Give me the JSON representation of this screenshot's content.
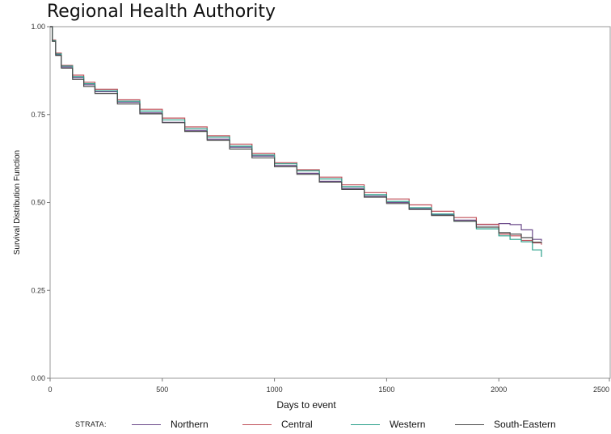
{
  "page_title": "Regional Health Authority",
  "chart_data": {
    "type": "line",
    "title": "Regional Health Authority",
    "xlabel": "Days to event",
    "ylabel": "Survival Distribution Function",
    "xlim": [
      0,
      2500
    ],
    "ylim": [
      0,
      1
    ],
    "xticks": [
      0,
      500,
      1000,
      1500,
      2000,
      2500
    ],
    "xtick_labels": [
      "0",
      "500",
      "1000",
      "1500",
      "2000",
      "2500"
    ],
    "yticks": [
      0,
      0.25,
      0.5,
      0.75,
      1
    ],
    "ytick_labels": [
      "0.00",
      "0.25",
      "0.50",
      "0.75",
      "1.00"
    ],
    "grid": false,
    "legend_position": "bottom",
    "legend_title": "STRATA:",
    "series": [
      {
        "name": "Northern",
        "color": "#6b4a8a",
        "x": [
          0,
          10,
          25,
          50,
          100,
          150,
          200,
          300,
          400,
          500,
          600,
          700,
          800,
          900,
          1000,
          1100,
          1200,
          1300,
          1400,
          1500,
          1600,
          1700,
          1800,
          1900,
          2000,
          2050,
          2100,
          2150,
          2190
        ],
        "y": [
          1.0,
          0.96,
          0.92,
          0.885,
          0.855,
          0.835,
          0.815,
          0.785,
          0.755,
          0.728,
          0.705,
          0.68,
          0.657,
          0.632,
          0.605,
          0.583,
          0.56,
          0.54,
          0.518,
          0.5,
          0.482,
          0.465,
          0.45,
          0.437,
          0.44,
          0.437,
          0.422,
          0.395,
          0.39
        ]
      },
      {
        "name": "Central",
        "color": "#c0505a",
        "x": [
          0,
          10,
          25,
          50,
          100,
          150,
          200,
          300,
          400,
          500,
          600,
          700,
          800,
          900,
          1000,
          1100,
          1200,
          1300,
          1400,
          1500,
          1600,
          1700,
          1800,
          1900,
          2000,
          2050,
          2100,
          2150,
          2190
        ],
        "y": [
          1.0,
          0.962,
          0.925,
          0.89,
          0.862,
          0.842,
          0.822,
          0.792,
          0.765,
          0.74,
          0.715,
          0.69,
          0.666,
          0.64,
          0.613,
          0.593,
          0.572,
          0.55,
          0.528,
          0.51,
          0.493,
          0.475,
          0.457,
          0.438,
          0.41,
          0.405,
          0.392,
          0.385,
          0.38
        ]
      },
      {
        "name": "Western",
        "color": "#2aa08a",
        "x": [
          0,
          10,
          25,
          50,
          100,
          150,
          200,
          300,
          400,
          500,
          600,
          700,
          800,
          900,
          1000,
          1100,
          1200,
          1300,
          1400,
          1500,
          1600,
          1700,
          1800,
          1900,
          2000,
          2050,
          2100,
          2150,
          2190
        ],
        "y": [
          1.0,
          0.96,
          0.922,
          0.888,
          0.858,
          0.838,
          0.818,
          0.788,
          0.76,
          0.735,
          0.71,
          0.686,
          0.66,
          0.635,
          0.61,
          0.59,
          0.567,
          0.545,
          0.522,
          0.503,
          0.485,
          0.467,
          0.447,
          0.425,
          0.405,
          0.395,
          0.388,
          0.365,
          0.345
        ]
      },
      {
        "name": "South-Eastern",
        "color": "#4a4a4a",
        "x": [
          0,
          10,
          25,
          50,
          100,
          150,
          200,
          300,
          400,
          500,
          600,
          700,
          800,
          900,
          1000,
          1100,
          1200,
          1300,
          1400,
          1500,
          1600,
          1700,
          1800,
          1900,
          2000,
          2050,
          2100,
          2150,
          2190
        ],
        "y": [
          1.0,
          0.958,
          0.918,
          0.882,
          0.85,
          0.83,
          0.81,
          0.78,
          0.752,
          0.727,
          0.702,
          0.677,
          0.652,
          0.627,
          0.602,
          0.58,
          0.558,
          0.537,
          0.515,
          0.497,
          0.48,
          0.463,
          0.447,
          0.43,
          0.414,
          0.41,
          0.4,
          0.387,
          0.384
        ]
      }
    ]
  }
}
